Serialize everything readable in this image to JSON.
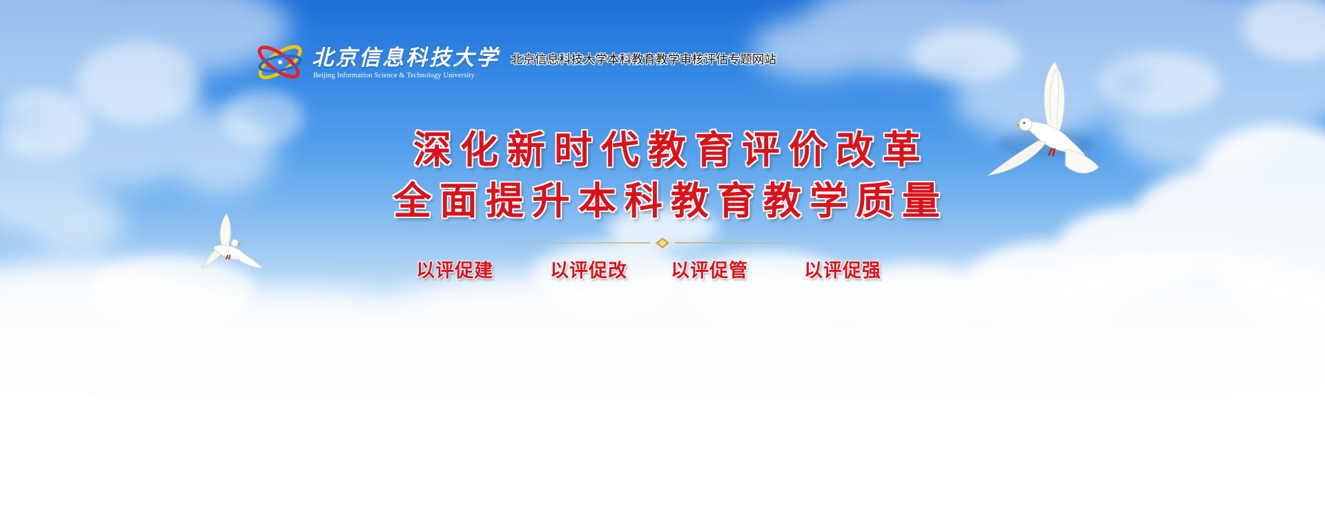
{
  "header": {
    "logo_cn": "北京信息科技大学",
    "logo_en": "Beijing Information Science & Technology University",
    "site_title": "北京信息科技大学本科教育教学审核评估专题网站"
  },
  "banner": {
    "headline_lines": [
      "深化新时代教育评价改革",
      "全面提升本科教育教学质量"
    ],
    "slogans": [
      "以评促建",
      "以评促改",
      "以评促管",
      "以评促强"
    ]
  },
  "icons": {
    "logo": "university-emblem-icon",
    "dove_large": "dove-icon",
    "dove_small": "dove-icon",
    "divider": "diamond-divider-icon"
  },
  "colors": {
    "headline_red": "#d9121b",
    "sky_blue": "#1f70d8",
    "divider_gold": "#c9a64a"
  }
}
